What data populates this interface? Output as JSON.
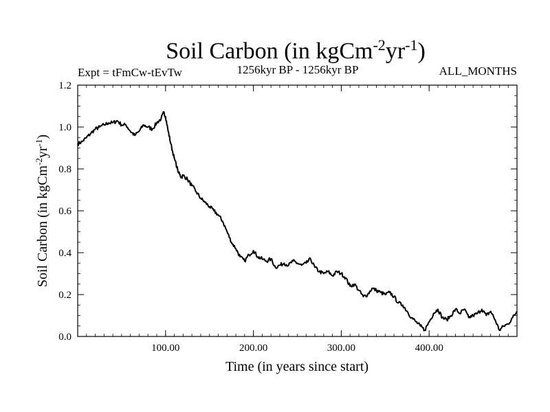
{
  "chart_data": {
    "type": "line",
    "title": "Soil Carbon (in kgCm",
    "title_sup1": "-2",
    "title_mid": "yr",
    "title_sup2": "-1",
    "title_end": ")",
    "subtitle_left": "Expt = tFmCw-tEvTw",
    "subtitle_center": "1256kyr BP - 1256kyr BP",
    "subtitle_right": "ALL_MONTHS",
    "xlabel": "Time (in years since start)",
    "ylabel_main": "Soil Carbon (in kgCm",
    "ylabel_sup1": "-2",
    "ylabel_mid": "yr",
    "ylabel_sup2": "-1",
    "ylabel_end": ")",
    "xlim": [
      0,
      500
    ],
    "ylim": [
      0,
      1.2
    ],
    "x_ticks": [
      {
        "value": 100,
        "label": "100.00"
      },
      {
        "value": 200,
        "label": "200.00"
      },
      {
        "value": 300,
        "label": "300.00"
      },
      {
        "value": 400,
        "label": "400.00"
      }
    ],
    "y_ticks": [
      {
        "value": 0.0,
        "label": "0.0"
      },
      {
        "value": 0.2,
        "label": "0.2"
      },
      {
        "value": 0.4,
        "label": "0.4"
      },
      {
        "value": 0.6,
        "label": "0.6"
      },
      {
        "value": 0.8,
        "label": "0.8"
      },
      {
        "value": 1.0,
        "label": "1.0"
      },
      {
        "value": 1.2,
        "label": "1.2"
      }
    ],
    "series": [
      {
        "name": "Soil Carbon",
        "color": "#000000",
        "x": [
          0,
          5,
          10,
          15,
          20,
          25,
          30,
          35,
          40,
          45,
          50,
          55,
          60,
          65,
          70,
          75,
          80,
          85,
          90,
          95,
          98,
          100,
          103,
          106,
          110,
          115,
          118,
          120,
          125,
          130,
          135,
          140,
          145,
          150,
          155,
          160,
          165,
          170,
          175,
          180,
          185,
          190,
          195,
          200,
          205,
          210,
          215,
          220,
          225,
          230,
          235,
          240,
          245,
          250,
          255,
          260,
          265,
          270,
          275,
          280,
          285,
          290,
          295,
          300,
          305,
          310,
          315,
          320,
          325,
          330,
          335,
          340,
          345,
          350,
          355,
          360,
          365,
          370,
          375,
          380,
          385,
          390,
          395,
          400,
          405,
          410,
          415,
          420,
          425,
          430,
          435,
          440,
          445,
          450,
          455,
          460,
          465,
          470,
          475,
          480,
          485,
          490,
          495,
          500
        ],
        "values": [
          0.92,
          0.93,
          0.95,
          0.97,
          0.99,
          1.0,
          1.01,
          1.02,
          1.02,
          1.03,
          1.01,
          1.01,
          0.98,
          0.96,
          0.98,
          1.01,
          1.0,
          0.99,
          1.02,
          1.04,
          1.07,
          1.05,
          0.98,
          0.92,
          0.85,
          0.78,
          0.76,
          0.77,
          0.75,
          0.72,
          0.69,
          0.66,
          0.64,
          0.62,
          0.6,
          0.58,
          0.55,
          0.5,
          0.45,
          0.42,
          0.38,
          0.36,
          0.39,
          0.41,
          0.38,
          0.37,
          0.36,
          0.37,
          0.33,
          0.34,
          0.35,
          0.34,
          0.36,
          0.35,
          0.34,
          0.35,
          0.37,
          0.33,
          0.31,
          0.3,
          0.31,
          0.29,
          0.31,
          0.3,
          0.28,
          0.24,
          0.25,
          0.22,
          0.19,
          0.2,
          0.23,
          0.22,
          0.21,
          0.2,
          0.21,
          0.19,
          0.16,
          0.15,
          0.12,
          0.09,
          0.07,
          0.05,
          0.03,
          0.07,
          0.11,
          0.13,
          0.09,
          0.08,
          0.1,
          0.13,
          0.11,
          0.13,
          0.09,
          0.1,
          0.11,
          0.13,
          0.1,
          0.12,
          0.08,
          0.03,
          0.05,
          0.06,
          0.09,
          0.12
        ]
      }
    ]
  }
}
